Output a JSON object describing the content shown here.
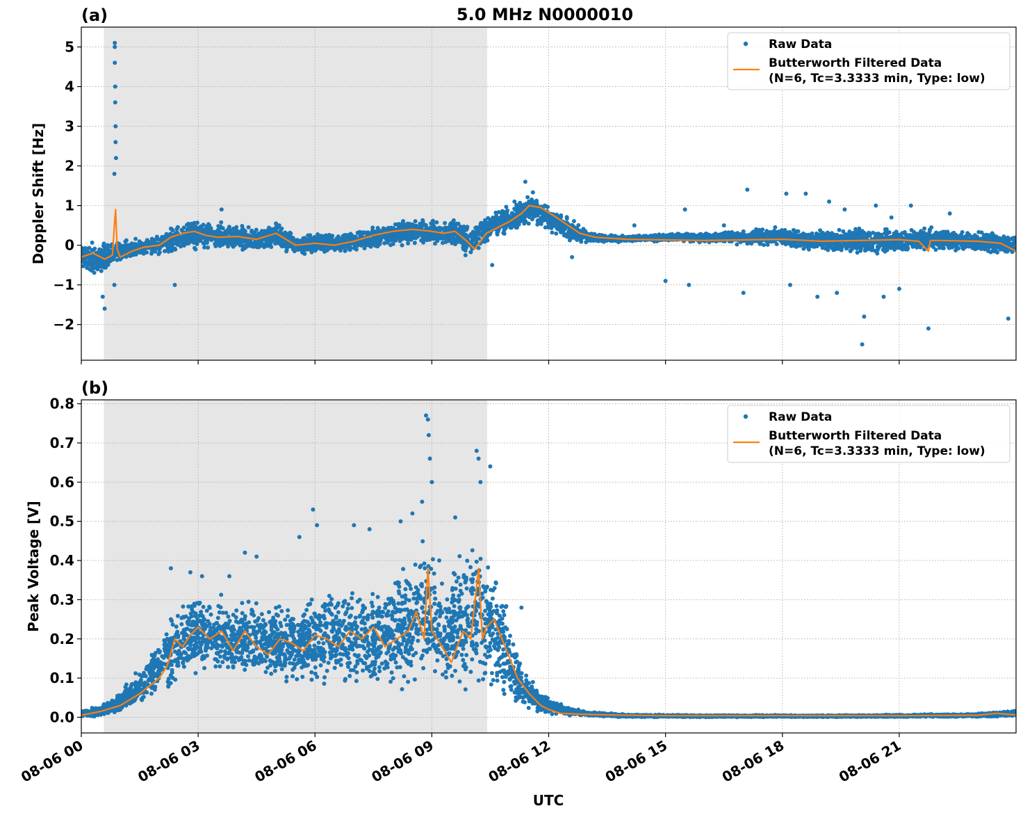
{
  "figure": {
    "title": "5.0 MHz N0000010",
    "xlabel": "UTC",
    "x_tick_labels": [
      "08-06 00",
      "08-06 03",
      "08-06 06",
      "08-06 09",
      "08-06 12",
      "08-06 15",
      "08-06 18",
      "08-06 21"
    ]
  },
  "colors": {
    "raw": "#1f77b4",
    "filtered": "#ff7f0e",
    "shade": "#e6e6e6",
    "grid": "#b0b0b0"
  },
  "chart_data": [
    {
      "type": "scatter",
      "panel_label": "(a)",
      "ylabel": "Doppler Shift [Hz]",
      "x_unit": "hours UTC since 08-06 00",
      "xlim": [
        0,
        24
      ],
      "ylim": [
        -2.9,
        5.5
      ],
      "yticks": [
        -2,
        -1,
        0,
        1,
        2,
        3,
        4,
        5
      ],
      "ytick_labels": [
        "−2",
        "−1",
        "0",
        "1",
        "2",
        "3",
        "4",
        "5"
      ],
      "shaded_interval": [
        0.58,
        10.42
      ],
      "grid": true,
      "legend": {
        "position": "top-right",
        "raw_label": "Raw Data",
        "filtered_label_line1": "Butterworth Filtered Data",
        "filtered_label_line2": "(N=6, Tc=3.3333 min, Type: low)"
      },
      "series": [
        {
          "name": "Butterworth Filtered Data",
          "x": [
            0,
            0.3,
            0.6,
            0.8,
            0.85,
            0.88,
            0.92,
            1.0,
            1.3,
            1.6,
            2.0,
            2.3,
            2.6,
            2.9,
            3.2,
            3.5,
            4.0,
            4.5,
            5.0,
            5.5,
            6.0,
            6.5,
            7.0,
            7.5,
            8.0,
            8.5,
            9.0,
            9.3,
            9.6,
            9.9,
            10.1,
            10.4,
            10.8,
            11.0,
            11.3,
            11.5,
            11.8,
            12.2,
            12.5,
            12.8,
            13.2,
            14,
            16,
            18,
            19,
            20,
            21,
            21.5,
            21.75,
            21.8,
            22,
            23,
            23.6,
            23.9,
            24
          ],
          "y": [
            -0.3,
            -0.2,
            -0.35,
            -0.25,
            0.5,
            0.9,
            -0.1,
            -0.3,
            -0.15,
            -0.05,
            0.0,
            0.2,
            0.3,
            0.35,
            0.25,
            0.2,
            0.22,
            0.15,
            0.3,
            0.0,
            0.05,
            0.0,
            0.1,
            0.25,
            0.35,
            0.4,
            0.35,
            0.3,
            0.35,
            0.1,
            -0.1,
            0.3,
            0.5,
            0.6,
            0.8,
            1.0,
            0.95,
            0.7,
            0.5,
            0.3,
            0.2,
            0.15,
            0.12,
            0.15,
            0.1,
            0.12,
            0.14,
            0.1,
            -0.15,
            0.12,
            0.12,
            0.1,
            0.05,
            -0.1,
            -0.15
          ]
        },
        {
          "name": "Raw Data",
          "band_x": [
            0,
            0.5,
            0.8,
            1.0,
            1.5,
            2.0,
            2.5,
            3.0,
            3.5,
            4.0,
            4.5,
            5.0,
            5.5,
            6.0,
            6.5,
            7.0,
            7.5,
            8.0,
            8.5,
            9.0,
            9.5,
            9.8,
            10.0,
            10.4,
            10.8,
            11.2,
            11.6,
            12.0,
            12.4,
            12.8,
            13.2,
            14,
            15,
            16,
            17,
            18,
            19,
            20,
            21,
            22,
            23,
            24
          ],
          "band_lo": [
            -0.7,
            -0.8,
            -0.6,
            -0.5,
            -0.35,
            -0.3,
            -0.2,
            -0.2,
            -0.15,
            -0.2,
            -0.25,
            -0.15,
            -0.3,
            -0.25,
            -0.25,
            -0.2,
            -0.15,
            -0.05,
            0.0,
            -0.05,
            -0.05,
            -0.3,
            -0.3,
            0.0,
            0.2,
            0.3,
            0.5,
            0.3,
            0.1,
            0.05,
            0.05,
            0.08,
            0.08,
            0.05,
            0.0,
            -0.1,
            -0.2,
            -0.3,
            -0.2,
            -0.2,
            -0.25,
            -0.3
          ],
          "band_hi": [
            0.15,
            0.1,
            0.2,
            0.15,
            0.2,
            0.3,
            0.6,
            0.75,
            0.6,
            0.55,
            0.5,
            0.65,
            0.3,
            0.35,
            0.3,
            0.4,
            0.55,
            0.6,
            0.7,
            0.7,
            0.75,
            0.7,
            0.5,
            0.8,
            1.0,
            1.2,
            1.35,
            1.0,
            0.8,
            0.55,
            0.3,
            0.25,
            0.3,
            0.35,
            0.4,
            0.5,
            0.45,
            0.5,
            0.45,
            0.5,
            0.4,
            0.3
          ],
          "outliers_x": [
            0.86,
            0.86,
            0.86,
            0.87,
            0.87,
            0.88,
            0.88,
            0.89,
            0.85,
            0.85,
            0.6,
            0.55,
            2.4,
            3.6,
            10.55,
            11.4,
            11.9,
            12.3,
            12.6,
            14.2,
            15.0,
            15.5,
            15.6,
            16.5,
            17.0,
            17.1,
            18.1,
            18.2,
            18.6,
            18.9,
            19.2,
            19.4,
            19.6,
            20.05,
            20.1,
            20.4,
            20.6,
            20.8,
            21.0,
            21.3,
            21.75,
            22.3,
            23.8
          ],
          "outliers_y": [
            5.1,
            5.0,
            4.6,
            4.0,
            3.6,
            3.0,
            2.6,
            2.2,
            1.8,
            -1.0,
            -1.6,
            -1.3,
            -1.0,
            0.9,
            -0.5,
            1.6,
            1.0,
            0.7,
            -0.3,
            0.5,
            -0.9,
            0.9,
            -1.0,
            0.5,
            -1.2,
            1.4,
            1.3,
            -1.0,
            1.3,
            -1.3,
            1.1,
            -1.2,
            0.9,
            -2.5,
            -1.8,
            1.0,
            -1.3,
            0.7,
            -1.1,
            1.0,
            -2.1,
            0.8,
            -1.85
          ]
        }
      ]
    },
    {
      "type": "scatter",
      "panel_label": "(b)",
      "ylabel": "Peak Voltage [V]",
      "x_unit": "hours UTC since 08-06 00",
      "xlim": [
        0,
        24
      ],
      "ylim": [
        -0.04,
        0.81
      ],
      "yticks": [
        0.0,
        0.1,
        0.2,
        0.3,
        0.4,
        0.5,
        0.6,
        0.7,
        0.8
      ],
      "ytick_labels": [
        "0.0",
        "0.1",
        "0.2",
        "0.3",
        "0.4",
        "0.5",
        "0.6",
        "0.7",
        "0.8"
      ],
      "shaded_interval": [
        0.58,
        10.42
      ],
      "grid": true,
      "legend": {
        "position": "top-right",
        "raw_label": "Raw Data",
        "filtered_label_line1": "Butterworth Filtered Data",
        "filtered_label_line2": "(N=6, Tc=3.3333 min, Type: low)"
      },
      "series": [
        {
          "name": "Butterworth Filtered Data",
          "x": [
            0,
            0.5,
            1.0,
            1.5,
            2.0,
            2.2,
            2.4,
            2.6,
            2.8,
            3.0,
            3.3,
            3.6,
            3.9,
            4.2,
            4.5,
            4.8,
            5.1,
            5.4,
            5.7,
            6.0,
            6.3,
            6.6,
            6.9,
            7.2,
            7.5,
            7.8,
            8.1,
            8.4,
            8.6,
            8.8,
            8.9,
            9.0,
            9.2,
            9.5,
            9.8,
            10.0,
            10.2,
            10.3,
            10.4,
            10.6,
            10.8,
            11.0,
            11.2,
            11.5,
            11.8,
            12.0,
            12.3,
            12.8,
            13.5,
            15,
            18,
            21,
            23,
            23.5,
            24
          ],
          "y": [
            0.005,
            0.015,
            0.03,
            0.06,
            0.1,
            0.13,
            0.2,
            0.18,
            0.21,
            0.23,
            0.2,
            0.22,
            0.17,
            0.22,
            0.18,
            0.16,
            0.2,
            0.19,
            0.17,
            0.21,
            0.2,
            0.18,
            0.22,
            0.2,
            0.23,
            0.18,
            0.2,
            0.22,
            0.27,
            0.2,
            0.38,
            0.22,
            0.19,
            0.14,
            0.22,
            0.2,
            0.38,
            0.2,
            0.23,
            0.25,
            0.2,
            0.15,
            0.1,
            0.06,
            0.03,
            0.02,
            0.01,
            0.008,
            0.006,
            0.004,
            0.004,
            0.004,
            0.005,
            0.01,
            0.006
          ]
        },
        {
          "name": "Raw Data",
          "band_x": [
            0,
            0.5,
            1.0,
            1.5,
            2.0,
            2.5,
            3.0,
            3.5,
            4.0,
            4.5,
            5.0,
            5.5,
            6.0,
            6.5,
            7.0,
            7.5,
            8.0,
            8.5,
            8.8,
            9.0,
            9.3,
            9.6,
            10.0,
            10.3,
            10.6,
            10.9,
            11.1,
            11.3,
            11.6,
            12.0,
            12.5,
            13.0,
            14,
            16,
            20,
            23,
            24
          ],
          "band_lo": [
            0.0,
            0.0,
            0.005,
            0.02,
            0.04,
            0.07,
            0.09,
            0.09,
            0.08,
            0.07,
            0.07,
            0.06,
            0.06,
            0.06,
            0.05,
            0.05,
            0.06,
            0.06,
            0.07,
            0.08,
            0.06,
            0.05,
            0.05,
            0.05,
            0.04,
            0.03,
            0.02,
            0.015,
            0.01,
            0.005,
            0.003,
            0.002,
            0.0,
            0.0,
            0.0,
            0.0,
            0.0
          ],
          "band_hi": [
            0.02,
            0.03,
            0.07,
            0.13,
            0.22,
            0.3,
            0.34,
            0.32,
            0.3,
            0.33,
            0.31,
            0.32,
            0.33,
            0.34,
            0.35,
            0.36,
            0.38,
            0.42,
            0.5,
            0.45,
            0.4,
            0.42,
            0.47,
            0.5,
            0.4,
            0.32,
            0.22,
            0.15,
            0.09,
            0.05,
            0.03,
            0.015,
            0.008,
            0.006,
            0.006,
            0.01,
            0.02
          ],
          "outliers_x": [
            8.85,
            8.9,
            8.92,
            8.95,
            9.0,
            8.75,
            10.15,
            10.2,
            10.25,
            10.5,
            5.95,
            6.05,
            7.4,
            7.0,
            8.2,
            8.5,
            5.6,
            2.3,
            2.8,
            3.1,
            3.8,
            4.5,
            4.2,
            9.6,
            11.3
          ],
          "outliers_y": [
            0.77,
            0.76,
            0.72,
            0.66,
            0.6,
            0.55,
            0.68,
            0.66,
            0.6,
            0.64,
            0.53,
            0.49,
            0.48,
            0.49,
            0.5,
            0.52,
            0.46,
            0.38,
            0.37,
            0.36,
            0.36,
            0.41,
            0.42,
            0.51,
            0.28
          ]
        }
      ]
    }
  ]
}
